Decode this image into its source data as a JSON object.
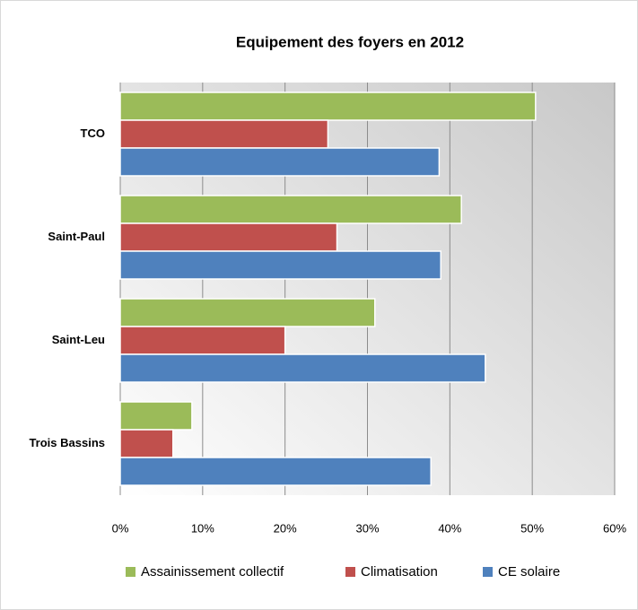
{
  "chart_data": {
    "type": "hbar",
    "title": "Equipement des foyers en 2012",
    "categories": [
      "TCO",
      "Saint-Paul",
      "Saint-Leu",
      "Trois Bassins"
    ],
    "series": [
      {
        "name": "Assainissement collectif",
        "color": "#9bbb59",
        "values": [
          50.4,
          41.4,
          30.9,
          8.7
        ]
      },
      {
        "name": "Climatisation",
        "color": "#c0504d",
        "values": [
          25.2,
          26.3,
          20.0,
          6.4
        ]
      },
      {
        "name": "CE solaire",
        "color": "#4f81bd",
        "values": [
          38.7,
          38.9,
          44.3,
          37.7
        ]
      }
    ],
    "xlim": [
      0,
      60
    ],
    "xticks": [
      {
        "value": 0,
        "label": "0%"
      },
      {
        "value": 10,
        "label": "10%"
      },
      {
        "value": 20,
        "label": "20%"
      },
      {
        "value": 30,
        "label": "30%"
      },
      {
        "value": 40,
        "label": "40%"
      },
      {
        "value": 50,
        "label": "50%"
      },
      {
        "value": 60,
        "label": "60%"
      }
    ],
    "grid": true,
    "legend": "bottom"
  }
}
